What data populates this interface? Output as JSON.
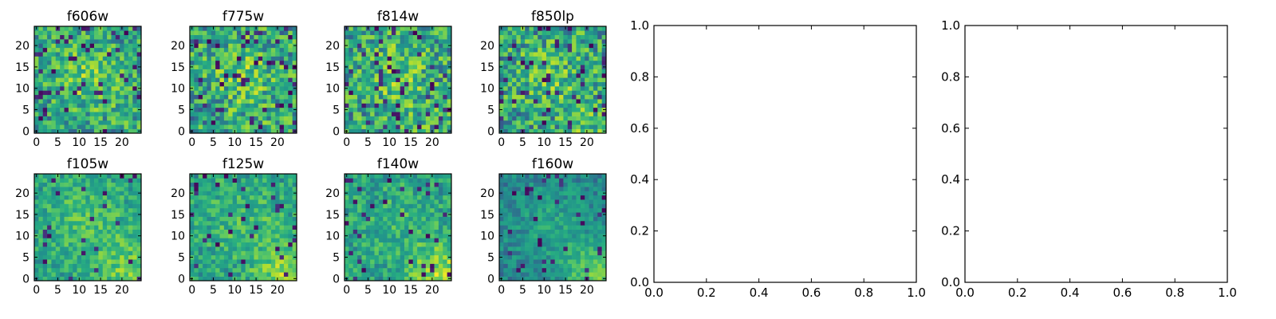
{
  "chart_data": [
    {
      "type": "heatmap",
      "title": "f606w",
      "grid_size": 25,
      "xlim": [
        0,
        24
      ],
      "ylim": [
        0,
        24
      ],
      "xticks": [
        0,
        5,
        10,
        15,
        20
      ],
      "yticks": [
        0,
        5,
        10,
        15,
        20
      ],
      "colormap": "viridis",
      "pattern": {
        "seed": 101,
        "noise": 0.45,
        "center": 0.55,
        "corner": 0.05,
        "dark_rate": 0.07
      },
      "xlabel": "",
      "ylabel": ""
    },
    {
      "type": "heatmap",
      "title": "f775w",
      "grid_size": 25,
      "xlim": [
        0,
        24
      ],
      "ylim": [
        0,
        24
      ],
      "xticks": [
        0,
        5,
        10,
        15,
        20
      ],
      "yticks": [
        0,
        5,
        10,
        15,
        20
      ],
      "colormap": "viridis",
      "pattern": {
        "seed": 202,
        "noise": 0.5,
        "center": 0.5,
        "corner": 0.05,
        "dark_rate": 0.09
      },
      "xlabel": "",
      "ylabel": ""
    },
    {
      "type": "heatmap",
      "title": "f814w",
      "grid_size": 25,
      "xlim": [
        0,
        24
      ],
      "ylim": [
        0,
        24
      ],
      "xticks": [
        0,
        5,
        10,
        15,
        20
      ],
      "yticks": [
        0,
        5,
        10,
        15,
        20
      ],
      "colormap": "viridis",
      "pattern": {
        "seed": 303,
        "noise": 0.5,
        "center": 0.5,
        "corner": 0.1,
        "dark_rate": 0.08
      },
      "xlabel": "",
      "ylabel": ""
    },
    {
      "type": "heatmap",
      "title": "f850lp",
      "grid_size": 25,
      "xlim": [
        0,
        24
      ],
      "ylim": [
        0,
        24
      ],
      "xticks": [
        0,
        5,
        10,
        15,
        20
      ],
      "yticks": [
        0,
        5,
        10,
        15,
        20
      ],
      "colormap": "viridis",
      "pattern": {
        "seed": 404,
        "noise": 0.5,
        "center": 0.4,
        "corner": 0.25,
        "dark_rate": 0.08
      },
      "xlabel": "",
      "ylabel": ""
    },
    {
      "type": "heatmap",
      "title": "f105w",
      "grid_size": 25,
      "xlim": [
        0,
        24
      ],
      "ylim": [
        0,
        24
      ],
      "xticks": [
        0,
        5,
        10,
        15,
        20
      ],
      "yticks": [
        0,
        5,
        10,
        15,
        20
      ],
      "colormap": "viridis",
      "pattern": {
        "seed": 505,
        "noise": 0.3,
        "center": 0.45,
        "corner": 0.4,
        "dark_rate": 0.04
      },
      "xlabel": "",
      "ylabel": ""
    },
    {
      "type": "heatmap",
      "title": "f125w",
      "grid_size": 25,
      "xlim": [
        0,
        24
      ],
      "ylim": [
        0,
        24
      ],
      "xticks": [
        0,
        5,
        10,
        15,
        20
      ],
      "yticks": [
        0,
        5,
        10,
        15,
        20
      ],
      "colormap": "viridis",
      "pattern": {
        "seed": 606,
        "noise": 0.32,
        "center": 0.35,
        "corner": 0.5,
        "dark_rate": 0.05
      },
      "xlabel": "",
      "ylabel": ""
    },
    {
      "type": "heatmap",
      "title": "f140w",
      "grid_size": 25,
      "xlim": [
        0,
        24
      ],
      "ylim": [
        0,
        24
      ],
      "xticks": [
        0,
        5,
        10,
        15,
        20
      ],
      "yticks": [
        0,
        5,
        10,
        15,
        20
      ],
      "colormap": "viridis",
      "pattern": {
        "seed": 707,
        "noise": 0.32,
        "center": 0.25,
        "corner": 0.55,
        "dark_rate": 0.05
      },
      "xlabel": "",
      "ylabel": ""
    },
    {
      "type": "heatmap",
      "title": "f160w",
      "grid_size": 25,
      "xlim": [
        0,
        24
      ],
      "ylim": [
        0,
        24
      ],
      "xticks": [
        0,
        5,
        10,
        15,
        20
      ],
      "yticks": [
        0,
        5,
        10,
        15,
        20
      ],
      "colormap": "viridis",
      "pattern": {
        "seed": 808,
        "noise": 0.22,
        "center": 0.35,
        "corner": 0.6,
        "dark_rate": 0.05,
        "offset": -0.1
      },
      "xlabel": "",
      "ylabel": ""
    },
    {
      "type": "line",
      "title": "",
      "series": [],
      "xlim": [
        0.0,
        1.0
      ],
      "ylim": [
        0.0,
        1.0
      ],
      "xticks": [
        "0.0",
        "0.2",
        "0.4",
        "0.6",
        "0.8",
        "1.0"
      ],
      "yticks": [
        "0.0",
        "0.2",
        "0.4",
        "0.6",
        "0.8",
        "1.0"
      ],
      "xlabel": "",
      "ylabel": ""
    },
    {
      "type": "line",
      "title": "",
      "series": [],
      "xlim": [
        0.0,
        1.0
      ],
      "ylim": [
        0.0,
        1.0
      ],
      "xticks": [
        "0.0",
        "0.2",
        "0.4",
        "0.6",
        "0.8",
        "1.0"
      ],
      "yticks": [
        "0.0",
        "0.2",
        "0.4",
        "0.6",
        "0.8",
        "1.0"
      ],
      "xlabel": "",
      "ylabel": ""
    }
  ]
}
